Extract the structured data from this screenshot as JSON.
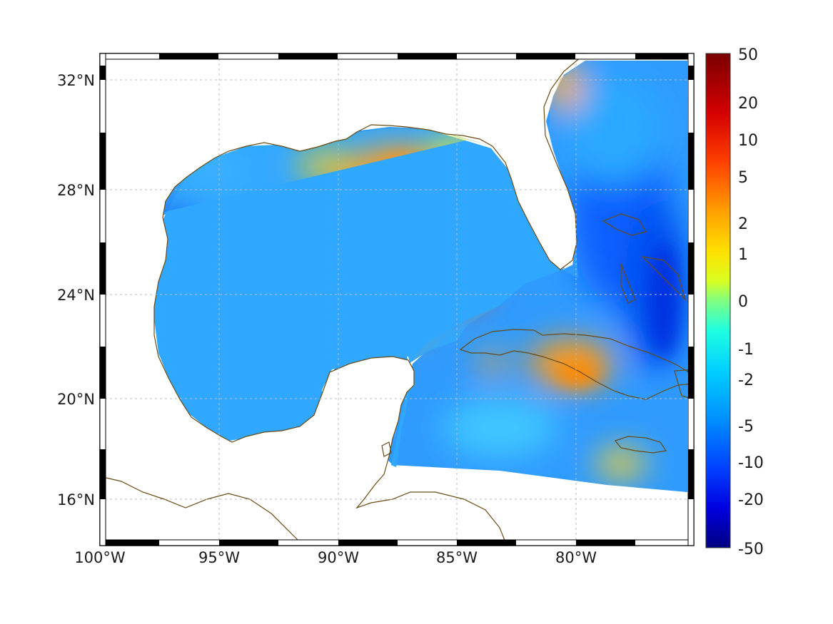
{
  "map": {
    "x_axis": {
      "labels": [
        "100°W",
        "95°W",
        "90°W",
        "85°W",
        "80°W"
      ]
    },
    "y_axis": {
      "labels": [
        "32°N",
        "28°N",
        "24°N",
        "20°N",
        "16°N"
      ]
    },
    "colorbar": {
      "labels": [
        "50",
        "20",
        "10",
        "5",
        "2",
        "1",
        "0",
        "-1",
        "-2",
        "-5",
        "-10",
        "-20",
        "-50"
      ],
      "colors": [
        "#00008f",
        "#0000ff",
        "#0064ff",
        "#00c8ff",
        "#40ffbf",
        "#bfff40",
        "#ffd000",
        "#ff8000",
        "#ff2000",
        "#c00000",
        "#800000"
      ]
    },
    "colors": {
      "ocean_base": "#2b8cff",
      "coastline": "#6b4a12",
      "land": "#ffffff",
      "grid": "#c8c8c8"
    }
  }
}
